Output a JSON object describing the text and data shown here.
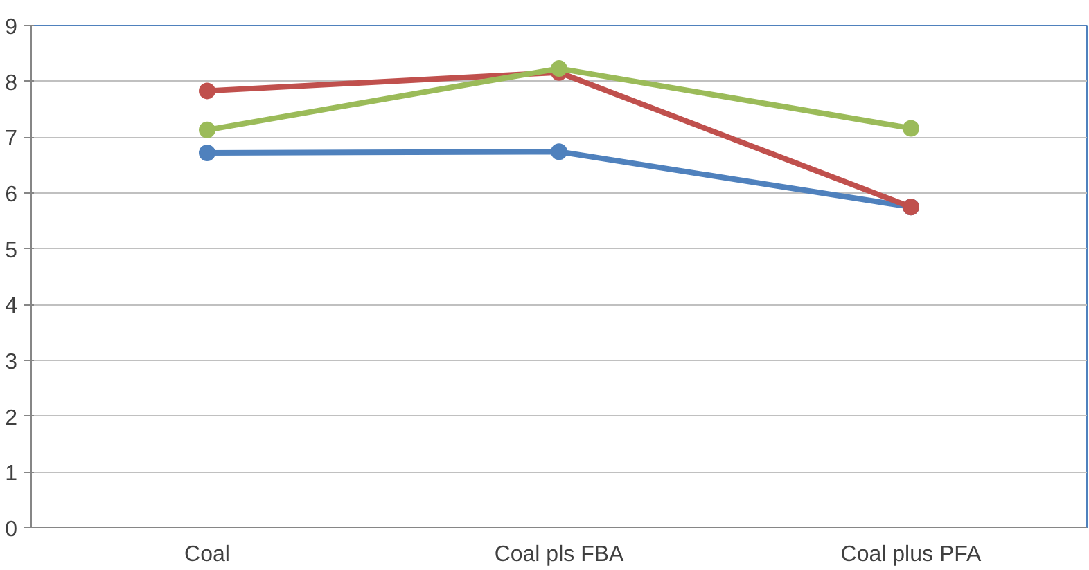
{
  "chart_data": {
    "type": "line",
    "categories": [
      "Coal",
      "Coal pls FBA",
      "Coal plus PFA"
    ],
    "series": [
      {
        "color": "#4f81bd",
        "values": [
          6.72,
          6.74,
          5.75
        ]
      },
      {
        "color": "#c0504d",
        "values": [
          7.83,
          8.16,
          5.75
        ]
      },
      {
        "color": "#9bbb59",
        "values": [
          7.13,
          8.23,
          7.16
        ]
      }
    ],
    "ylim": [
      0,
      9
    ],
    "yticks": [
      0,
      1,
      2,
      3,
      4,
      5,
      6,
      7,
      8,
      9
    ],
    "grid": "y",
    "marker": "circle",
    "line_style": "solid"
  }
}
